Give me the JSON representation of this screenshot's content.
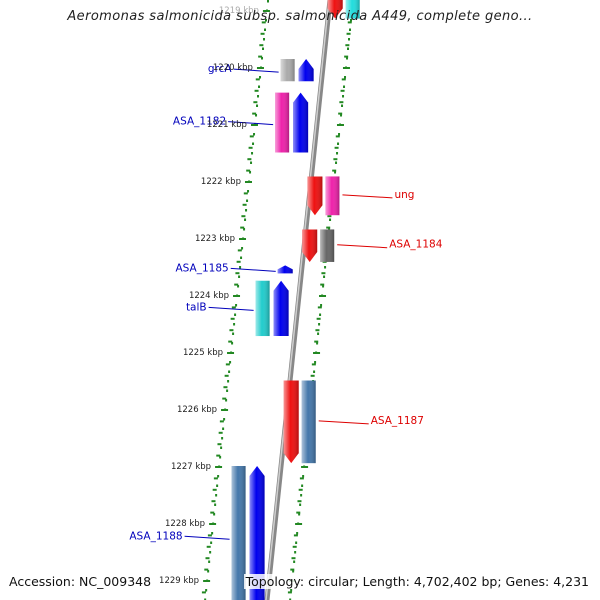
{
  "title": "Aeromonas salmonicida subsp. salmonicida A449, complete geno...",
  "accession": "Accession: NC_009348",
  "topology": "Topology: circular; Length: 4,702,402 bp; Genes: 4,231",
  "colors": {
    "forward_label": "#0000bb",
    "reverse_label": "#dd0000",
    "tick": "#228822",
    "backbone": "#888888"
  },
  "ruler": [
    {
      "kbp": 1219,
      "label": "1219 kbp"
    },
    {
      "kbp": 1220,
      "label": "1220 kbp"
    },
    {
      "kbp": 1221,
      "label": "1221 kbp"
    },
    {
      "kbp": 1222,
      "label": "1222 kbp"
    },
    {
      "kbp": 1223,
      "label": "1223 kbp"
    },
    {
      "kbp": 1224,
      "label": "1224 kbp"
    },
    {
      "kbp": 1225,
      "label": "1225 kbp"
    },
    {
      "kbp": 1226,
      "label": "1226 kbp"
    },
    {
      "kbp": 1227,
      "label": "1227 kbp"
    },
    {
      "kbp": 1228,
      "label": "1228 kbp"
    },
    {
      "kbp": 1229,
      "label": "1229 kbp"
    }
  ],
  "genes": [
    {
      "name": "",
      "strand": "-",
      "start": 1218.6,
      "end": 1219.15,
      "color": "#ee1111",
      "partner": "#22dddd"
    },
    {
      "name": "grcA",
      "strand": "+",
      "start": 1219.86,
      "end": 1220.25,
      "color": "#0000ee",
      "partner": "#aaaaaa"
    },
    {
      "name": "ASA_1182",
      "strand": "+",
      "start": 1220.45,
      "end": 1221.5,
      "color": "#0000ee",
      "partner": "#ee22aa"
    },
    {
      "name": "ung",
      "strand": "-",
      "start": 1221.92,
      "end": 1222.6,
      "color": "#ee1111",
      "partner": "#ee22aa"
    },
    {
      "name": "ASA_1184",
      "strand": "-",
      "start": 1222.85,
      "end": 1223.42,
      "color": "#ee1111",
      "partner": "#666666"
    },
    {
      "name": "ASA_1185",
      "strand": "+",
      "start": 1223.48,
      "end": 1223.62,
      "color": "#0000ee",
      "partner": ""
    },
    {
      "name": "talB",
      "strand": "+",
      "start": 1223.75,
      "end": 1224.72,
      "color": "#0000ee",
      "partner": "#22cccc"
    },
    {
      "name": "ASA_1187",
      "strand": "-",
      "start": 1225.5,
      "end": 1226.95,
      "color": "#ee1111",
      "partner": "#4477aa"
    },
    {
      "name": "ASA_1188",
      "strand": "+",
      "start": 1227.0,
      "end": 1229.5,
      "color": "#0000ee",
      "partner": "#4477aa"
    }
  ]
}
